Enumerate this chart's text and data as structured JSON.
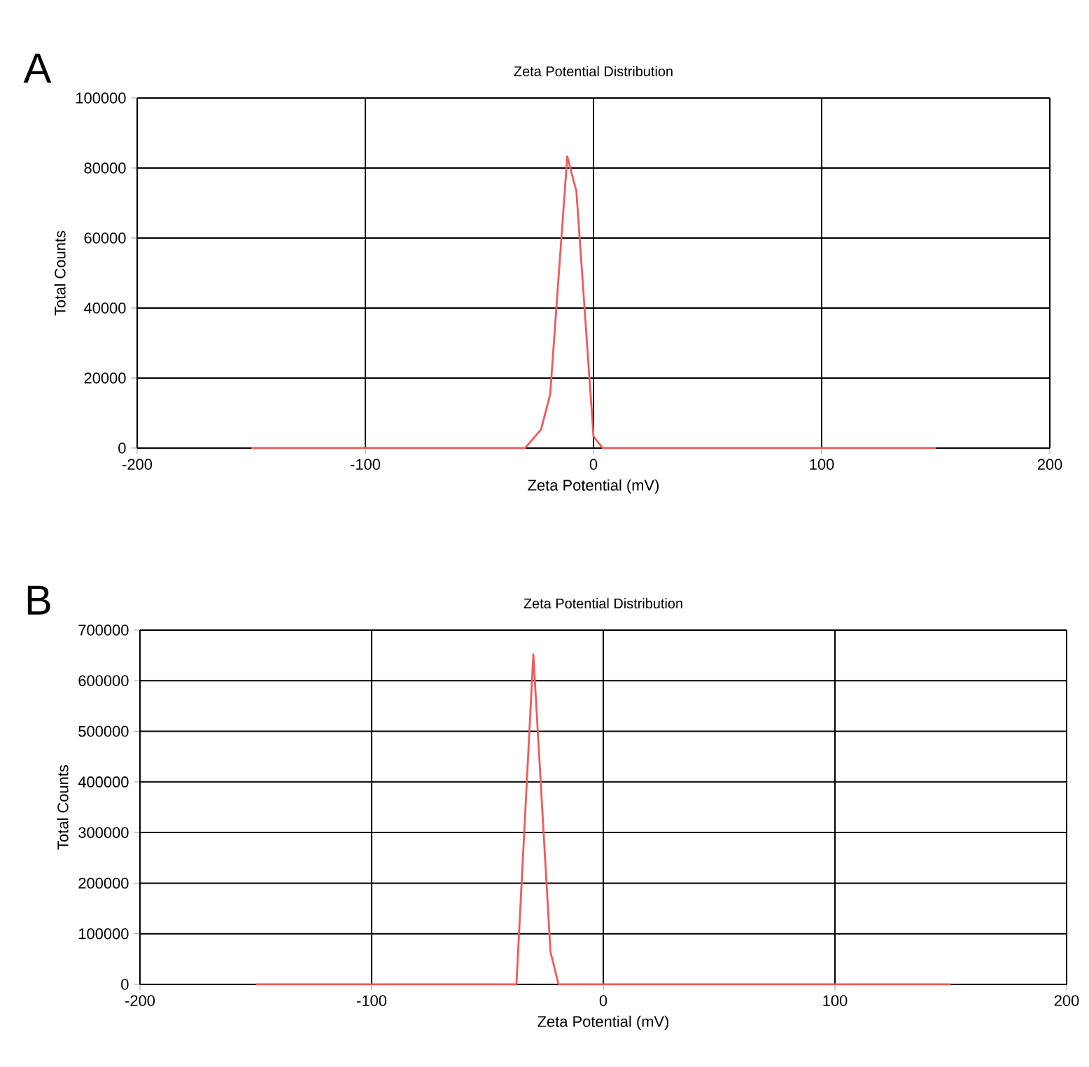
{
  "chart_data": [
    {
      "type": "line",
      "title": "Zeta Potential Distribution",
      "xlabel": "Zeta Potential (mV)",
      "ylabel": "Total Counts",
      "annotations": [
        "A"
      ],
      "grid": true,
      "xlim": [
        -200,
        200
      ],
      "xticks": [
        -200,
        -100,
        0,
        100,
        200
      ],
      "ylim": [
        0,
        100000
      ],
      "yticks": [
        0,
        20000,
        40000,
        60000,
        80000,
        100000
      ],
      "series": [
        {
          "color": "#f05a5a",
          "x": [
            -150,
            -30,
            -23,
            -19,
            -11.5,
            -7.5,
            0,
            4,
            150
          ],
          "values": [
            0,
            0,
            5300,
            15300,
            83300,
            73300,
            3300,
            0,
            0
          ]
        }
      ]
    },
    {
      "type": "line",
      "title": "Zeta Potential Distribution",
      "xlabel": "Zeta Potential (mV)",
      "ylabel": "Total Counts",
      "annotations": [
        "B"
      ],
      "grid": true,
      "xlim": [
        -200,
        200
      ],
      "xticks": [
        -200,
        -100,
        0,
        100,
        200
      ],
      "ylim": [
        0,
        700000
      ],
      "yticks": [
        0,
        100000,
        200000,
        300000,
        400000,
        500000,
        600000,
        700000
      ],
      "series": [
        {
          "color": "#f05a5a",
          "x": [
            -150,
            -37.5,
            -30.2,
            -22.8,
            -19.3,
            150
          ],
          "values": [
            0,
            0,
            652000,
            64000,
            0,
            0
          ]
        }
      ]
    }
  ]
}
